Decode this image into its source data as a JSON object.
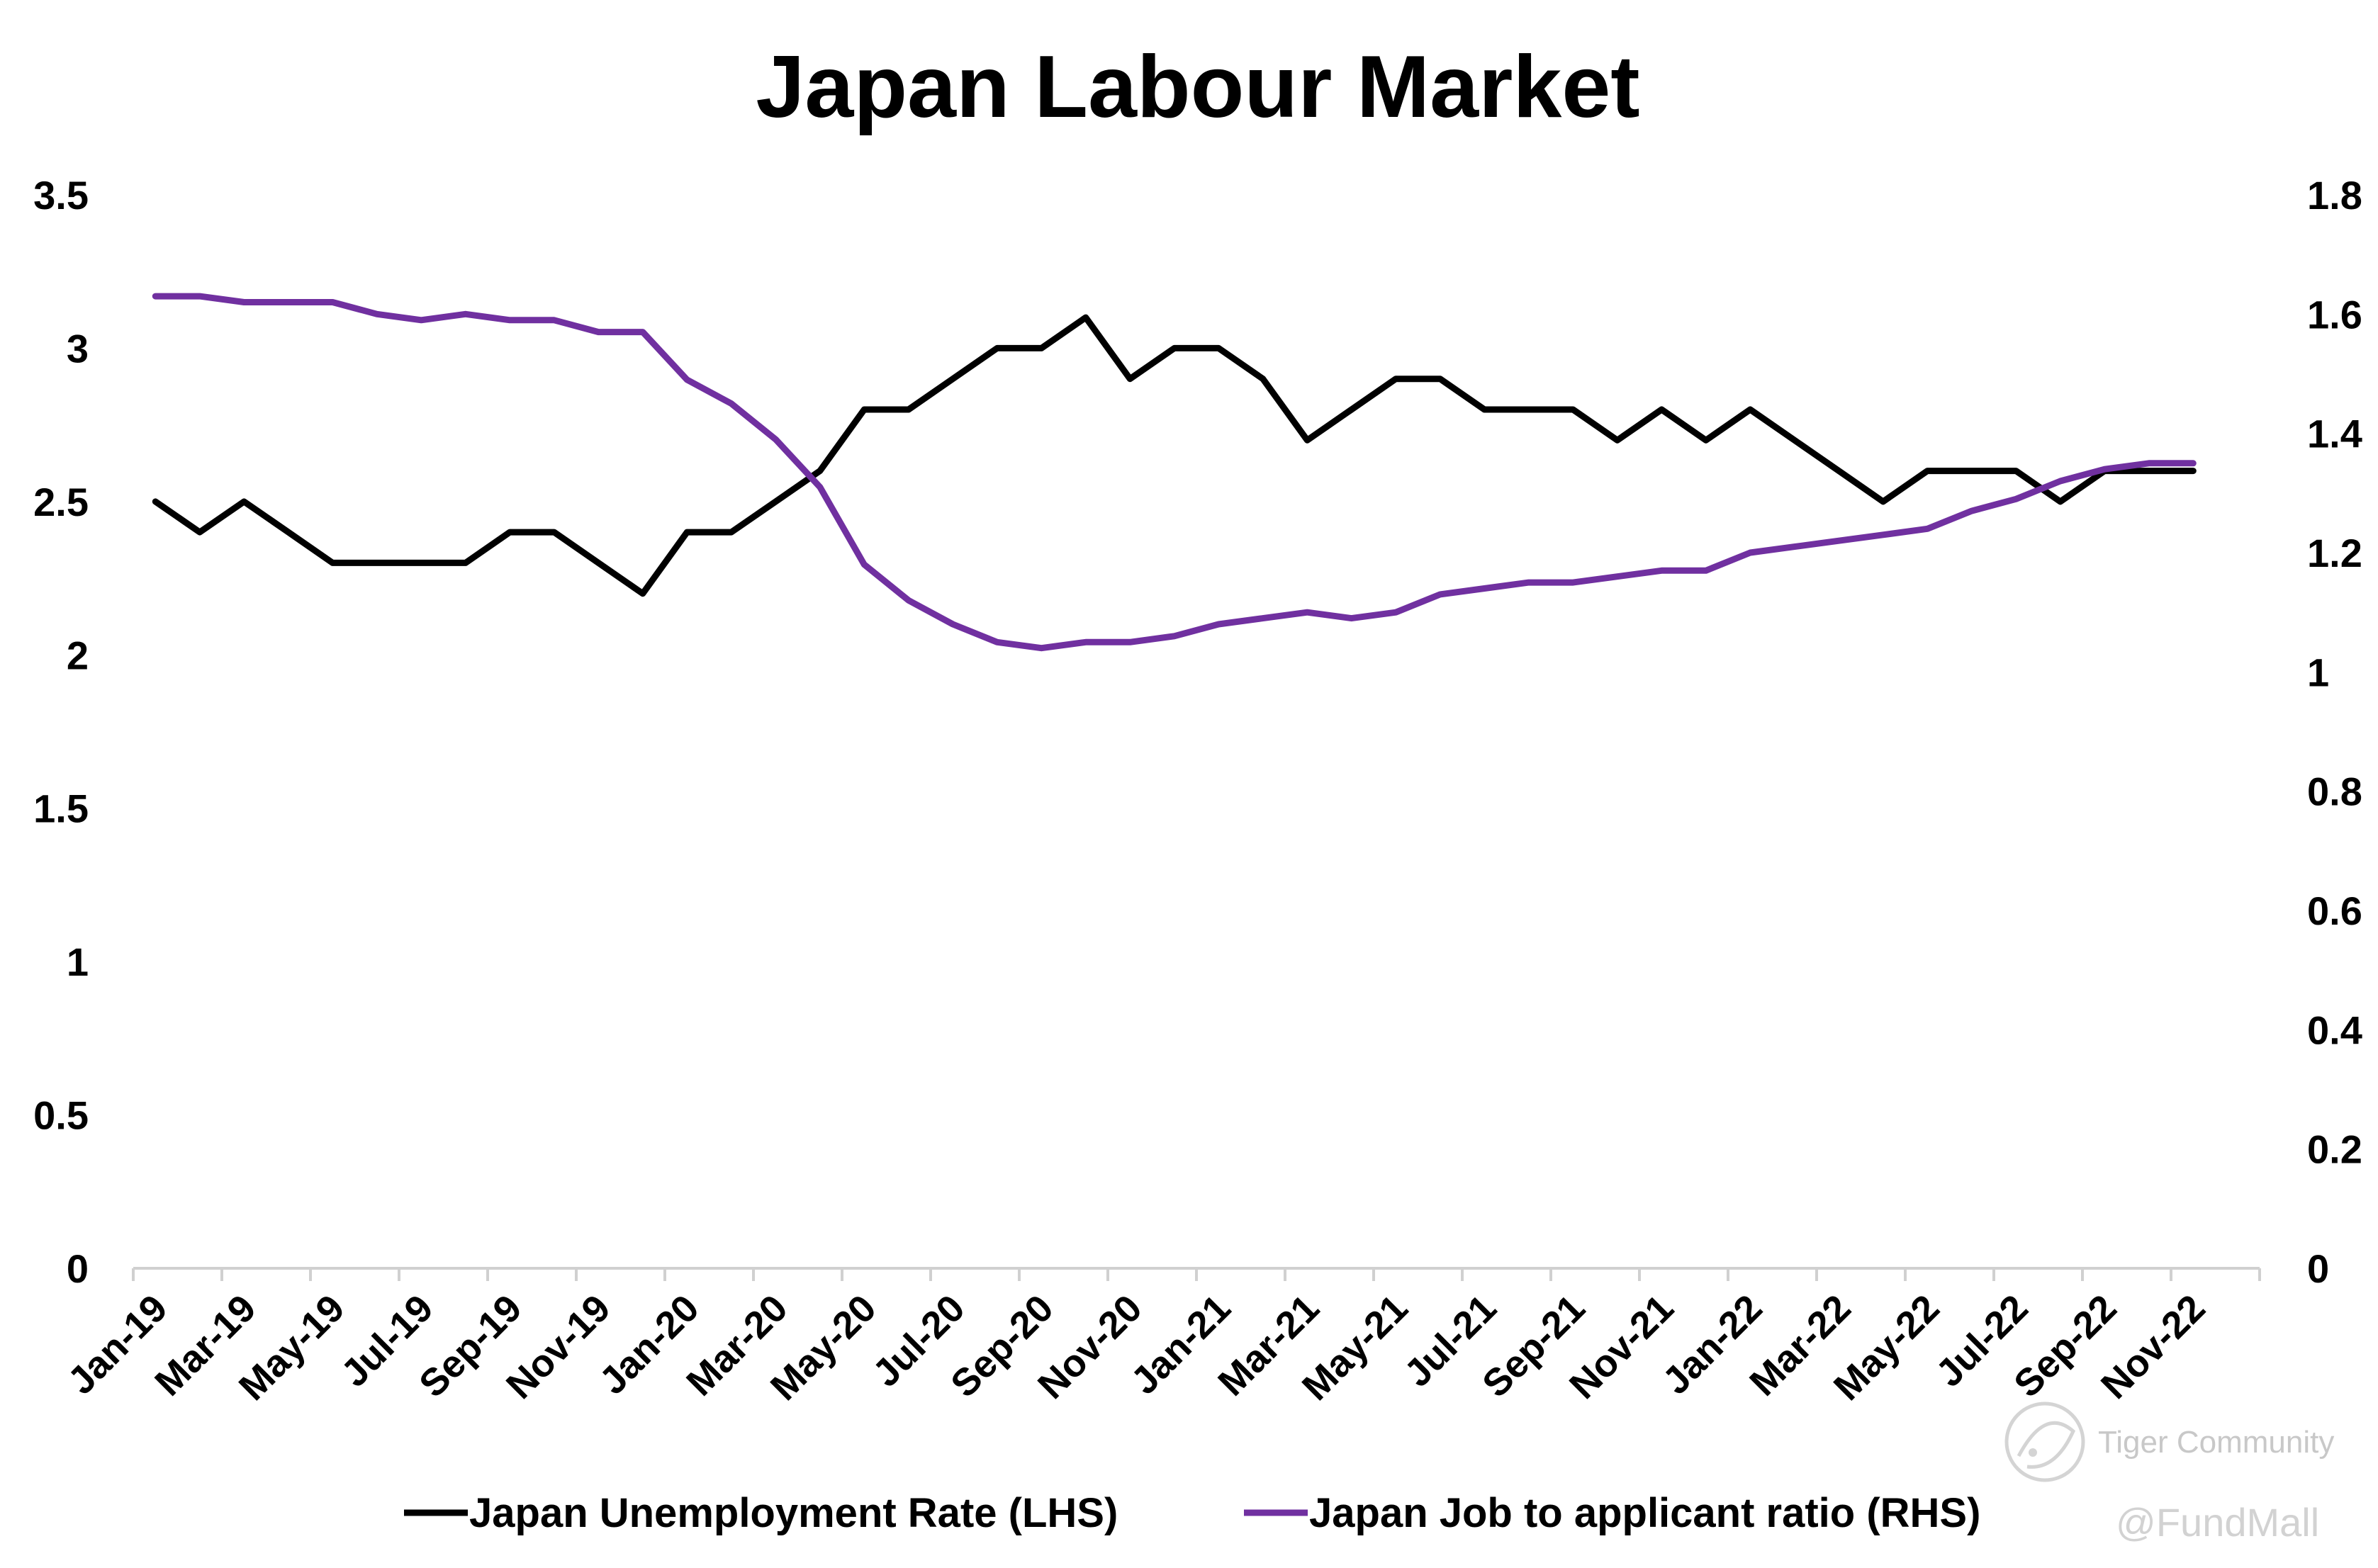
{
  "chart_data": {
    "type": "line",
    "title": "Japan Labour Market",
    "categories": [
      "Jan-19",
      "Feb-19",
      "Mar-19",
      "Apr-19",
      "May-19",
      "Jun-19",
      "Jul-19",
      "Aug-19",
      "Sep-19",
      "Oct-19",
      "Nov-19",
      "Dec-19",
      "Jan-20",
      "Feb-20",
      "Mar-20",
      "Apr-20",
      "May-20",
      "Jun-20",
      "Jul-20",
      "Aug-20",
      "Sep-20",
      "Oct-20",
      "Nov-20",
      "Dec-20",
      "Jan-21",
      "Feb-21",
      "Mar-21",
      "Apr-21",
      "May-21",
      "Jun-21",
      "Jul-21",
      "Aug-21",
      "Sep-21",
      "Oct-21",
      "Nov-21",
      "Dec-21",
      "Jan-22",
      "Feb-22",
      "Mar-22",
      "Apr-22",
      "May-22",
      "Jun-22",
      "Jul-22",
      "Aug-22",
      "Sep-22",
      "Oct-22",
      "Nov-22",
      "Dec-22"
    ],
    "x_tick_labels": [
      "Jan-19",
      "Mar-19",
      "May-19",
      "Jul-19",
      "Sep-19",
      "Nov-19",
      "Jan-20",
      "Mar-20",
      "May-20",
      "Jul-20",
      "Sep-20",
      "Nov-20",
      "Jan-21",
      "Mar-21",
      "May-21",
      "Jul-21",
      "Sep-21",
      "Nov-21",
      "Jan-22",
      "Mar-22",
      "May-22",
      "Jul-22",
      "Sep-22",
      "Nov-22"
    ],
    "y_left": {
      "min": 0,
      "max": 3.5,
      "ticks": [
        "0",
        "0.5",
        "1",
        "1.5",
        "2",
        "2.5",
        "3",
        "3.5"
      ]
    },
    "y_right": {
      "min": 0,
      "max": 1.8,
      "ticks": [
        "0",
        "0.2",
        "0.4",
        "0.6",
        "0.8",
        "1",
        "1.2",
        "1.4",
        "1.6",
        "1.8"
      ]
    },
    "grid": false,
    "legend": "bottom",
    "series": [
      {
        "name": "Japan Unemployment Rate (LHS)",
        "axis": "left",
        "color": "#000000",
        "values": [
          2.5,
          2.4,
          2.5,
          2.4,
          2.3,
          2.3,
          2.3,
          2.3,
          2.4,
          2.4,
          2.3,
          2.2,
          2.4,
          2.4,
          2.5,
          2.6,
          2.8,
          2.8,
          2.9,
          3.0,
          3.0,
          3.1,
          2.9,
          3.0,
          3.0,
          2.9,
          2.7,
          2.8,
          2.9,
          2.9,
          2.8,
          2.8,
          2.8,
          2.7,
          2.8,
          2.7,
          2.8,
          2.7,
          2.6,
          2.5,
          2.6,
          2.6,
          2.6,
          2.5,
          2.6,
          2.6,
          2.6,
          null
        ]
      },
      {
        "name": "Japan Job to applicant ratio (RHS)",
        "axis": "right",
        "color": "#7030a0",
        "values": [
          1.63,
          1.63,
          1.62,
          1.62,
          1.62,
          1.6,
          1.59,
          1.6,
          1.59,
          1.59,
          1.57,
          1.57,
          1.49,
          1.45,
          1.39,
          1.31,
          1.18,
          1.12,
          1.08,
          1.05,
          1.04,
          1.05,
          1.05,
          1.06,
          1.08,
          1.09,
          1.1,
          1.09,
          1.1,
          1.13,
          1.14,
          1.15,
          1.15,
          1.16,
          1.17,
          1.17,
          1.2,
          1.21,
          1.22,
          1.23,
          1.24,
          1.27,
          1.29,
          1.32,
          1.34,
          1.35,
          1.35,
          null
        ]
      }
    ]
  },
  "watermark": {
    "community": "Tiger Community",
    "handle": "@FundMall"
  },
  "colors": {
    "unemployment": "#000000",
    "job_ratio": "#7030a0",
    "axis": "#d0d0d0"
  }
}
